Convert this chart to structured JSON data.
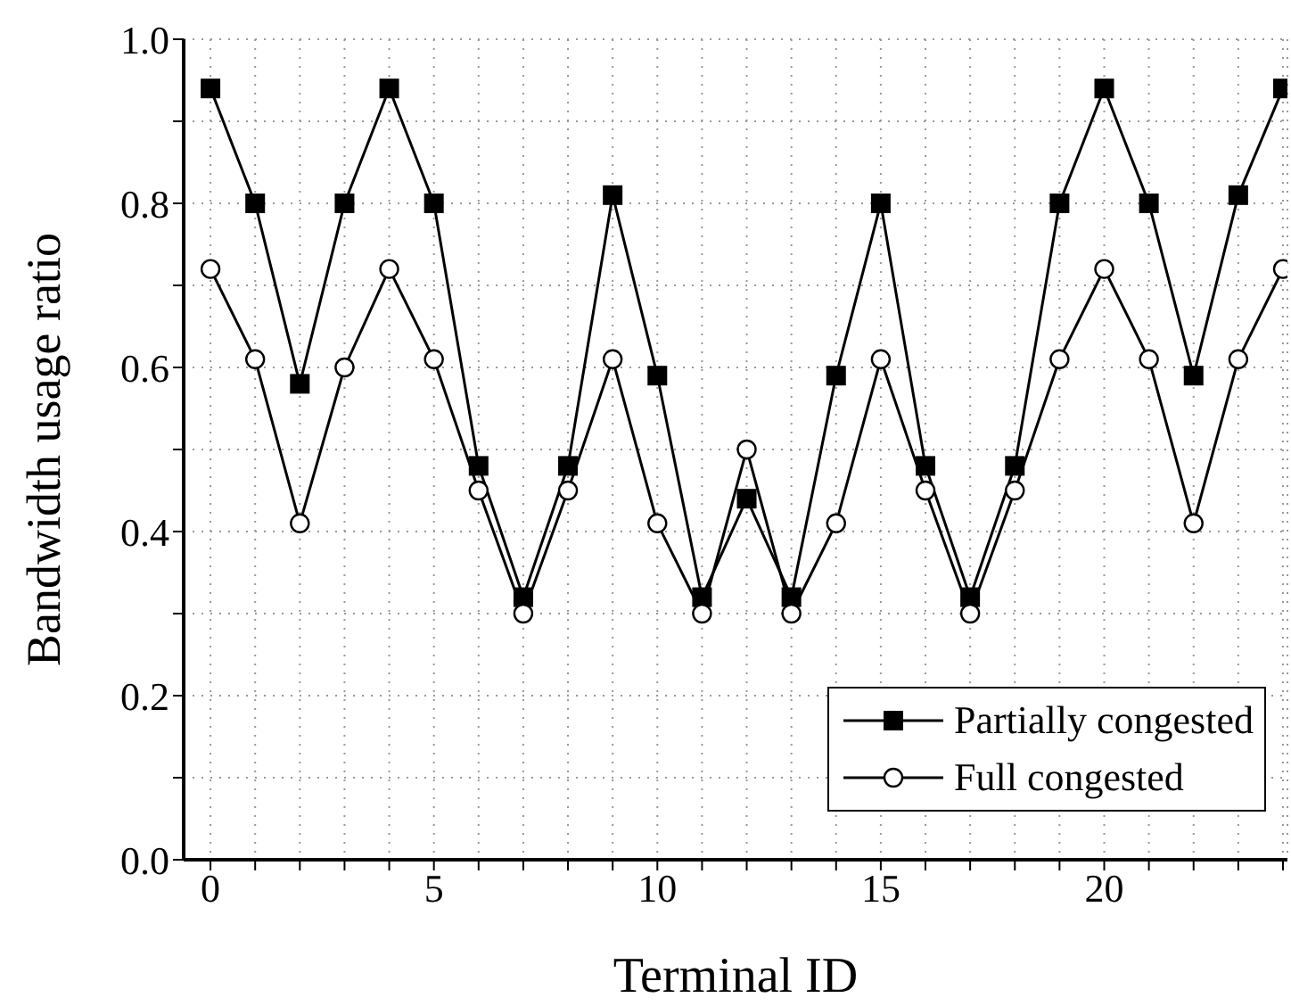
{
  "chart_data": {
    "type": "line",
    "xlabel": "Terminal ID",
    "ylabel": "Bandwidth usage ratio",
    "x": [
      0,
      1,
      2,
      3,
      4,
      5,
      6,
      7,
      8,
      9,
      10,
      11,
      12,
      13,
      14,
      15,
      16,
      17,
      18,
      19,
      20,
      21,
      22,
      23,
      24
    ],
    "series": [
      {
        "name": "Partially congested",
        "color": "#000000",
        "marker": "square",
        "values": [
          0.94,
          0.8,
          0.58,
          0.8,
          0.94,
          0.8,
          0.48,
          0.32,
          0.48,
          0.81,
          0.59,
          0.32,
          0.44,
          0.32,
          0.59,
          0.8,
          0.48,
          0.32,
          0.48,
          0.8,
          0.94,
          0.8,
          0.59,
          0.81,
          0.94
        ]
      },
      {
        "name": "Full congested",
        "color": "#000000",
        "marker": "circle",
        "values": [
          0.72,
          0.61,
          0.41,
          0.6,
          0.72,
          0.61,
          0.45,
          0.3,
          0.45,
          0.61,
          0.41,
          0.3,
          0.5,
          0.3,
          0.41,
          0.61,
          0.45,
          0.3,
          0.45,
          0.61,
          0.72,
          0.61,
          0.41,
          0.61,
          0.72
        ]
      }
    ],
    "xlim": [
      -0.6,
      24.1
    ],
    "xticks": [
      0,
      {
        "value": 1,
        "label": null
      },
      {
        "value": 2,
        "label": null
      },
      {
        "value": 3,
        "label": null
      },
      {
        "value": 4,
        "label": null
      },
      5,
      {
        "value": 6,
        "label": null
      },
      {
        "value": 7,
        "label": null
      },
      {
        "value": 8,
        "label": null
      },
      {
        "value": 9,
        "label": null
      },
      10,
      {
        "value": 11,
        "label": null
      },
      {
        "value": 12,
        "label": null
      },
      {
        "value": 13,
        "label": null
      },
      {
        "value": 14,
        "label": null
      },
      15,
      {
        "value": 16,
        "label": null
      },
      {
        "value": 17,
        "label": null
      },
      {
        "value": 18,
        "label": null
      },
      {
        "value": 19,
        "label": null
      },
      20,
      {
        "value": 21,
        "label": null
      },
      {
        "value": 22,
        "label": null
      },
      {
        "value": 23,
        "label": null
      },
      {
        "value": 24,
        "label": null
      }
    ],
    "ylim": [
      0,
      1
    ],
    "yticks": [
      {
        "value": 0,
        "label": "0.0"
      },
      {
        "value": 0.1,
        "label": null
      },
      0.2,
      {
        "value": 0.3,
        "label": null
      },
      0.4,
      {
        "value": 0.5,
        "label": null
      },
      0.6,
      {
        "value": 0.7,
        "label": null
      },
      0.8,
      {
        "value": 0.9,
        "label": null
      },
      {
        "value": 1,
        "label": "1.0"
      }
    ],
    "grid": true,
    "legend": "bottom right",
    "line_style": "solid"
  }
}
